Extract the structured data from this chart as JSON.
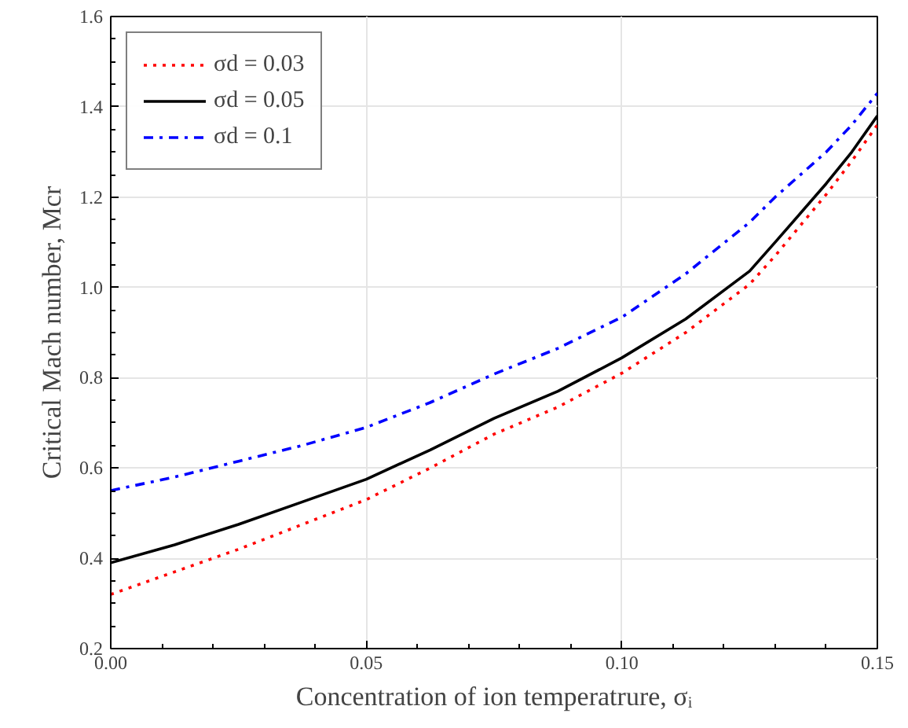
{
  "chart_data": {
    "type": "line",
    "xlabel": "Concentration of ion temperatrure, σᵢ",
    "ylabel": "Critical Mach number, Mcr",
    "x": [
      0,
      0.0125,
      0.025,
      0.0375,
      0.05,
      0.0625,
      0.075,
      0.0875,
      0.1,
      0.1125,
      0.125,
      0.13,
      0.14,
      0.145,
      0.15
    ],
    "series": [
      {
        "name": "σd = 0.03",
        "color": "#ff0000",
        "line_style": "dotted",
        "values": [
          0.32,
          0.37,
          0.42,
          0.475,
          0.53,
          0.6,
          0.675,
          0.735,
          0.81,
          0.9,
          1.007,
          1.07,
          1.206,
          1.28,
          1.36
        ]
      },
      {
        "name": "σd = 0.05",
        "color": "#000000",
        "line_style": "solid",
        "values": [
          0.39,
          0.43,
          0.475,
          0.525,
          0.575,
          0.64,
          0.71,
          0.77,
          0.844,
          0.93,
          1.036,
          1.1,
          1.23,
          1.3,
          1.38
        ]
      },
      {
        "name": "σd = 0.1",
        "color": "#0000ff",
        "line_style": "dashdot",
        "values": [
          0.55,
          0.58,
          0.615,
          0.65,
          0.69,
          0.745,
          0.808,
          0.865,
          0.934,
          1.03,
          1.144,
          1.2,
          1.3,
          1.36,
          1.43
        ]
      }
    ],
    "xlim": [
      0,
      0.15
    ],
    "ylim": [
      0.2,
      1.6
    ],
    "xticks": [
      {
        "value": 0,
        "label": "0.00"
      },
      {
        "value": 0.05,
        "label": "0.05"
      },
      {
        "value": 0.1,
        "label": "0.10"
      },
      {
        "value": 0.15,
        "label": "0.15"
      }
    ],
    "yticks": [
      0.2,
      0.4,
      0.6,
      0.8,
      {
        "value": 1.0,
        "label": "1.0"
      },
      1.2,
      1.4,
      1.6
    ],
    "grid": true,
    "legend": "top left",
    "marker": "none"
  }
}
